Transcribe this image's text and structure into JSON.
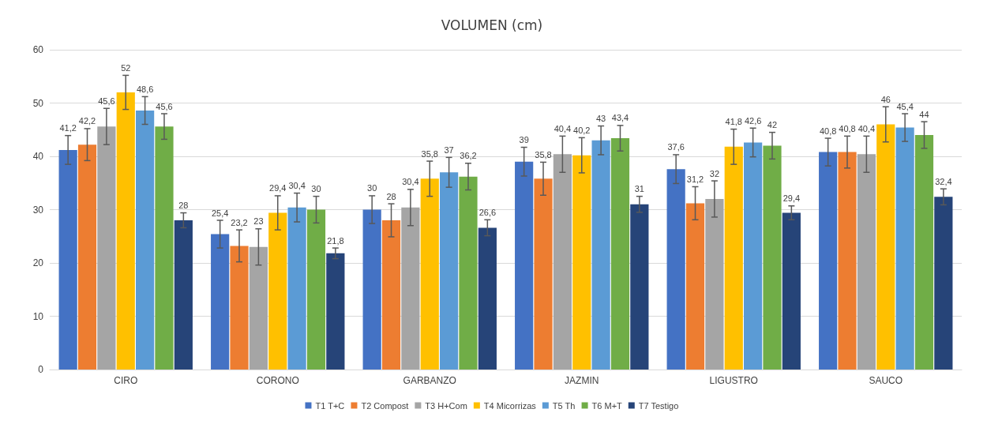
{
  "chart_data": {
    "type": "bar",
    "title": "VOLUMEN (cm)",
    "categories": [
      "CIRO",
      "CORONO",
      "GARBANZO",
      "JAZMIN",
      "LIGUSTRO",
      "SAUCO"
    ],
    "series": [
      {
        "name": "T1 T+C",
        "color": "#4472c4",
        "values": [
          41.2,
          25.4,
          30,
          39,
          37.6,
          40.8
        ],
        "value_labels": [
          "41,2",
          "25,4",
          "30",
          "39",
          "37,6",
          "40,8"
        ],
        "errors": [
          2.7,
          2.6,
          2.6,
          2.7,
          2.7,
          2.6
        ]
      },
      {
        "name": "T2 Compost",
        "color": "#ed7d31",
        "values": [
          42.2,
          23.2,
          28,
          35.8,
          31.2,
          40.8
        ],
        "value_labels": [
          "42,2",
          "23,2",
          "28",
          "35,8",
          "31,2",
          "40,8"
        ],
        "errors": [
          3.0,
          3.0,
          3.1,
          3.1,
          3.1,
          3.0
        ]
      },
      {
        "name": "T3 H+Com",
        "color": "#a5a5a5",
        "values": [
          45.6,
          23,
          30.4,
          40.4,
          32,
          40.4
        ],
        "value_labels": [
          "45,6",
          "23",
          "30,4",
          "40,4",
          "32",
          "40,4"
        ],
        "errors": [
          3.4,
          3.4,
          3.4,
          3.4,
          3.4,
          3.4
        ]
      },
      {
        "name": "T4 Micorrizas",
        "color": "#ffc000",
        "values": [
          52,
          29.4,
          35.8,
          40.2,
          41.8,
          46
        ],
        "value_labels": [
          "52",
          "29,4",
          "35,8",
          "40,2",
          "41,8",
          "46"
        ],
        "errors": [
          3.2,
          3.2,
          3.3,
          3.3,
          3.3,
          3.3
        ]
      },
      {
        "name": "T5 Th",
        "color": "#5b9bd5",
        "values": [
          48.6,
          30.4,
          37,
          43,
          42.6,
          45.4
        ],
        "value_labels": [
          "48,6",
          "30,4",
          "37",
          "43",
          "42,6",
          "45,4"
        ],
        "errors": [
          2.6,
          2.7,
          2.8,
          2.7,
          2.7,
          2.6
        ]
      },
      {
        "name": "T6 M+T",
        "color": "#70ad47",
        "values": [
          45.6,
          30,
          36.2,
          43.4,
          42,
          44
        ],
        "value_labels": [
          "45,6",
          "30",
          "36,2",
          "43,4",
          "42",
          "44"
        ],
        "errors": [
          2.4,
          2.5,
          2.5,
          2.4,
          2.5,
          2.5
        ]
      },
      {
        "name": "T7 Testigo",
        "color": "#264478",
        "values": [
          28,
          21.8,
          26.6,
          31,
          29.4,
          32.4
        ],
        "value_labels": [
          "28",
          "21,8",
          "26,6",
          "31",
          "29,4",
          "32,4"
        ],
        "errors": [
          1.4,
          1.0,
          1.5,
          1.5,
          1.3,
          1.5
        ]
      }
    ],
    "ylim": [
      0,
      60
    ],
    "yticks": [
      0,
      10,
      20,
      30,
      40,
      50,
      60
    ],
    "grid": "y",
    "legend": "bottom"
  }
}
